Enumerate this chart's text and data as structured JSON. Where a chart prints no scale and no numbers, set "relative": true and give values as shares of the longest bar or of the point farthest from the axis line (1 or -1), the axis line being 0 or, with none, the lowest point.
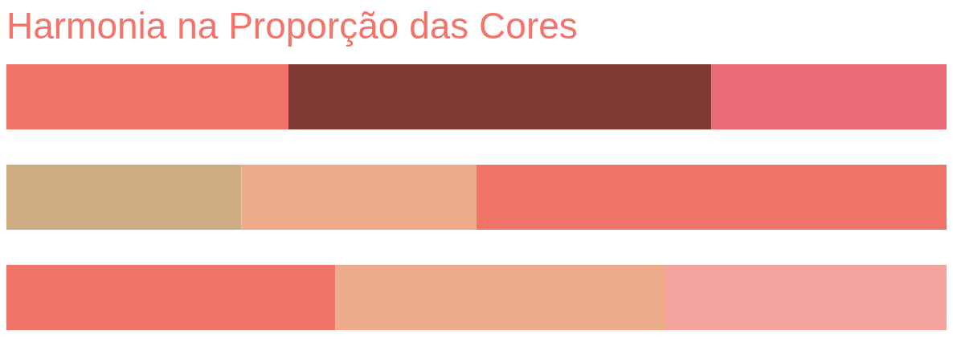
{
  "chart_data": {
    "type": "bar",
    "title": "Harmonia na Proporção das Cores",
    "orientation": "horizontal",
    "stacked": true,
    "relative": true,
    "categories": [
      null,
      null,
      null
    ],
    "series": [
      {
        "values": [
          0.3,
          0.25,
          0.35
        ],
        "colors": [
          "#f07468",
          "#cfab82",
          "#f07468"
        ]
      },
      {
        "values": [
          0.45,
          0.25,
          0.35
        ],
        "colors": [
          "#7f3a33",
          "#edab8a",
          "#edac8a"
        ]
      },
      {
        "values": [
          0.25,
          0.5,
          0.3
        ],
        "colors": [
          "#ea6a7a",
          "#f07468",
          "#f4a39f"
        ]
      }
    ]
  }
}
